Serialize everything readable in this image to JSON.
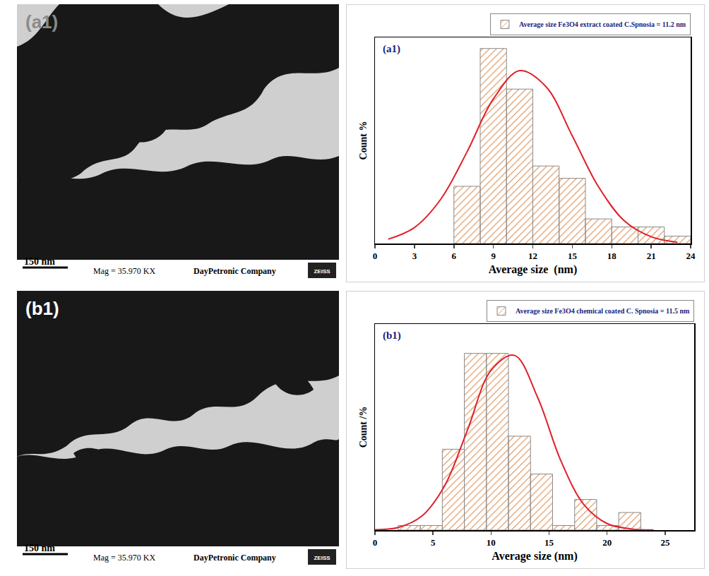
{
  "chart_data": [
    {
      "type": "histogram",
      "panel_label": "(a1)",
      "xlabel": "Average size  (nm)",
      "ylabel": "Count %",
      "xlim": [
        0,
        24
      ],
      "xticks": [
        0,
        3,
        6,
        9,
        12,
        15,
        18,
        21,
        24
      ],
      "ylim": [
        0,
        33.5
      ],
      "tick_labels": "x",
      "grid": false,
      "legend": "above",
      "bins": [
        6,
        8,
        10,
        12,
        14,
        16,
        18,
        20,
        22,
        24
      ],
      "series": [
        {
          "name": "Average size Fe3O4 extract coated C.Spnosia = 11.2 nm",
          "type": "bar",
          "color": "#fbd0a8",
          "values": [
            9.3,
            31.7,
            25.1,
            12.6,
            10.6,
            4.0,
            2.7,
            2.7,
            1.2
          ]
        },
        {
          "type": "line",
          "color": "#e0202a",
          "x": [
            1,
            3,
            5,
            7,
            9,
            11,
            13,
            15,
            17,
            19,
            21,
            23
          ],
          "values": [
            0.7,
            2.6,
            7.2,
            14.9,
            23.5,
            28.1,
            25.5,
            17.5,
            9.2,
            3.6,
            1.1,
            0.2
          ]
        }
      ]
    },
    {
      "type": "histogram",
      "panel_label": "(b1)",
      "xlabel": "Average size (nm)",
      "ylabel": "Count /%",
      "xlim": [
        0,
        27.5
      ],
      "xticks": [
        0,
        5,
        10,
        15,
        20,
        25
      ],
      "ylim": [
        0,
        31.6
      ],
      "tick_labels": "x",
      "grid": false,
      "legend": "above",
      "bins": [
        2.0,
        3.9,
        5.8,
        7.7,
        9.6,
        11.5,
        13.4,
        15.3,
        17.2,
        19.1,
        21.0,
        22.9
      ],
      "series": [
        {
          "name": "Average size Fe3O4 chemical coated C. Spnosia = 11.5 nm",
          "type": "bar",
          "color": "#fbd0a8",
          "values": [
            0.7,
            0.7,
            12.4,
            27.1,
            27.1,
            14.4,
            8.6,
            0.7,
            4.7,
            0.7,
            2.7
          ]
        },
        {
          "type": "line",
          "color": "#e0202a",
          "x": [
            0,
            2,
            4,
            6,
            8,
            10,
            12,
            14,
            16,
            18,
            20,
            22,
            24
          ],
          "values": [
            0.06,
            0.4,
            2.1,
            6.8,
            15.5,
            24.5,
            26.8,
            20.4,
            10.7,
            3.9,
            1.0,
            0.2,
            0.02
          ]
        }
      ]
    }
  ],
  "micrographs": [
    {
      "label": "(a1)",
      "scale_bar": "150 nm",
      "magnification": "Mag = 35.970 KX",
      "company": "DayPetronic Company",
      "logo": "ZEISS"
    },
    {
      "label": "(b1)",
      "scale_bar": "150 nm",
      "magnification": "Mag = 35.970 KX",
      "company": "DayPetronic Company",
      "logo": "ZEISS"
    }
  ]
}
